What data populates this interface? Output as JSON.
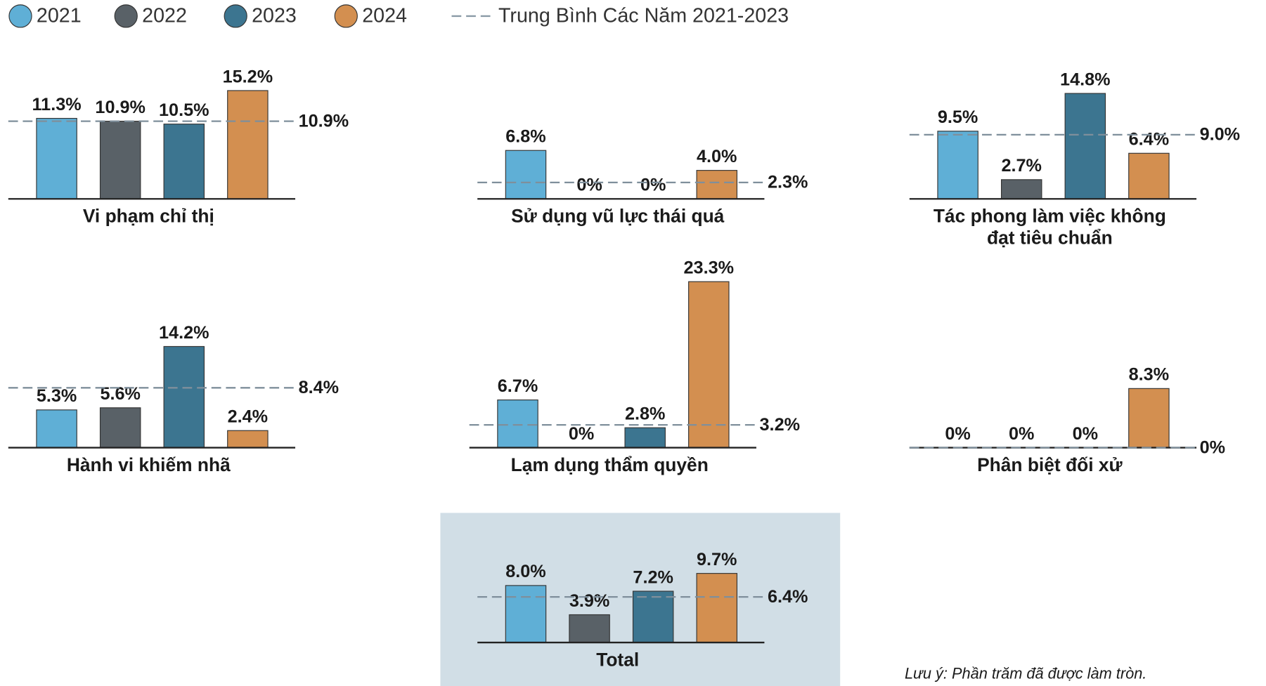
{
  "legend": {
    "series": [
      {
        "name": "2021",
        "color": "#5fafd6"
      },
      {
        "name": "2022",
        "color": "#596167"
      },
      {
        "name": "2023",
        "color": "#3c7590"
      },
      {
        "name": "2024",
        "color": "#d38f50"
      }
    ],
    "average": "Trung Bình Các Năm 2021-2023"
  },
  "note": "Lưu ý: Phần trăm đã được làm tròn.",
  "chart_data": [
    {
      "type": "bar",
      "title": "Vi phạm chỉ thị",
      "values": [
        11.3,
        10.9,
        10.5,
        15.2
      ],
      "value_labels": [
        "11.3%",
        "10.9%",
        "10.5%",
        "15.2%"
      ],
      "average": 10.9,
      "average_label": "10.9%"
    },
    {
      "type": "bar",
      "title": "Sử dụng vũ lực thái quá",
      "values": [
        6.8,
        0,
        0,
        4.0
      ],
      "value_labels": [
        "6.8%",
        "0%",
        "0%",
        "4.0%"
      ],
      "average": 2.3,
      "average_label": "2.3%"
    },
    {
      "type": "bar",
      "title": [
        "Tác phong làm việc không",
        "đạt tiêu chuẩn"
      ],
      "values": [
        9.5,
        2.7,
        14.8,
        6.4
      ],
      "value_labels": [
        "9.5%",
        "2.7%",
        "14.8%",
        "6.4%"
      ],
      "average": 9.0,
      "average_label": "9.0%"
    },
    {
      "type": "bar",
      "title": "Hành vi khiếm nhã",
      "values": [
        5.3,
        5.6,
        14.2,
        2.4
      ],
      "value_labels": [
        "5.3%",
        "5.6%",
        "14.2%",
        "2.4%"
      ],
      "average": 8.4,
      "average_label": "8.4%"
    },
    {
      "type": "bar",
      "title": "Lạm dụng thẩm quyền",
      "values": [
        6.7,
        0,
        2.8,
        23.3
      ],
      "value_labels": [
        "6.7%",
        "0%",
        "2.8%",
        "23.3%"
      ],
      "average": 3.2,
      "average_label": "3.2%"
    },
    {
      "type": "bar",
      "title": "Phân biệt đối xử",
      "values": [
        0,
        0,
        0,
        8.3
      ],
      "value_labels": [
        "0%",
        "0%",
        "0%",
        "8.3%"
      ],
      "average": 0,
      "average_label": "0%"
    },
    {
      "type": "bar",
      "title": "Total",
      "values": [
        8.0,
        3.9,
        7.2,
        9.7
      ],
      "value_labels": [
        "8.0%",
        "3.9%",
        "7.2%",
        "9.7%"
      ],
      "average": 6.4,
      "average_label": "6.4%"
    }
  ]
}
